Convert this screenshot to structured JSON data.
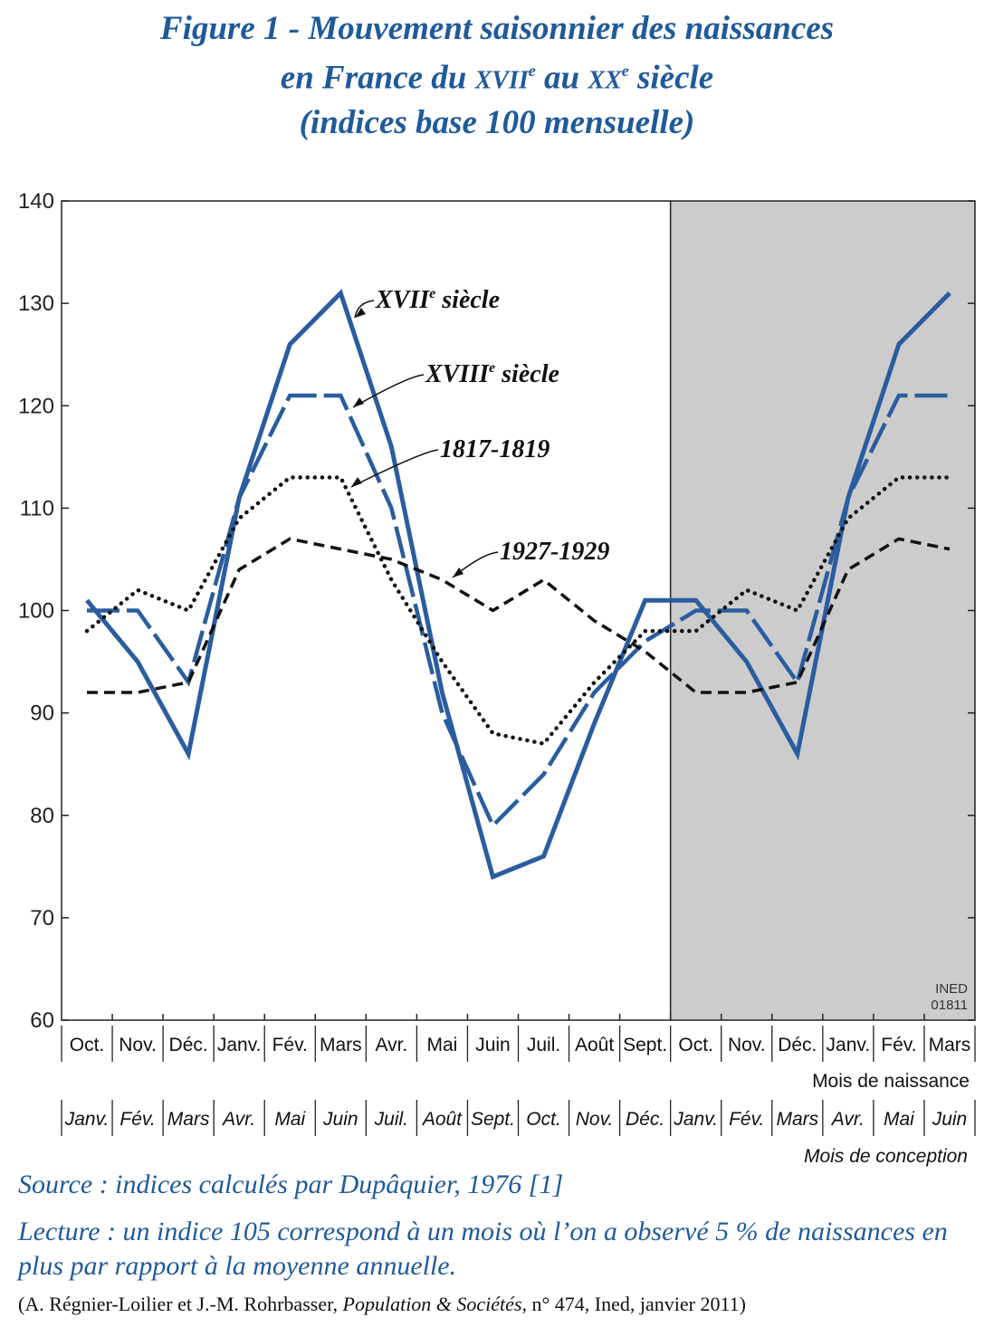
{
  "title": {
    "line1": "Figure 1 - Mouvement saisonnier des naissances",
    "line2_pre": "en France du ",
    "line2_c1": "XVII",
    "line2_sup1": "e",
    "line2_mid": " au ",
    "line2_c2": "XX",
    "line2_sup2": "e",
    "line2_post": " siècle",
    "line3": "(indices base 100 mensuelle)"
  },
  "chart_data": {
    "type": "line",
    "ylim": [
      60,
      140
    ],
    "yticks": [
      60,
      70,
      80,
      90,
      100,
      110,
      120,
      130,
      140
    ],
    "categories_naissance": [
      "Oct.",
      "Nov.",
      "Déc.",
      "Janv.",
      "Fév.",
      "Mars",
      "Avr.",
      "Mai",
      "Juin",
      "Juil.",
      "Août",
      "Sept.",
      "Oct.",
      "Nov.",
      "Déc.",
      "Janv.",
      "Fév.",
      "Mars"
    ],
    "categories_conception": [
      "Janv.",
      "Fév.",
      "Mars",
      "Avr.",
      "Mai",
      "Juin",
      "Juil.",
      "Août",
      "Sept.",
      "Oct.",
      "Nov.",
      "Déc.",
      "Janv.",
      "Fév.",
      "Mars",
      "Avr.",
      "Mai",
      "Juin"
    ],
    "xlabel_naissance": "Mois de naissance",
    "xlabel_conception": "Mois de conception",
    "shaded_from_index": 12,
    "series": [
      {
        "label_main": "XVII",
        "label_sup": "e",
        "label_rest": " siècle",
        "style": "solid",
        "color": "#2a5d9f",
        "values": [
          101,
          95,
          86,
          111,
          126,
          131,
          116,
          92,
          74,
          76,
          89,
          101,
          101,
          95,
          86,
          111,
          126,
          131
        ]
      },
      {
        "label_main": "XVIII",
        "label_sup": "e",
        "label_rest": " siècle",
        "style": "longdash",
        "color": "#2a5d9f",
        "values": [
          100,
          100,
          93,
          111,
          121,
          121,
          110,
          90,
          79,
          84,
          92,
          97,
          100,
          100,
          93,
          111,
          121,
          121
        ]
      },
      {
        "label_main": "1817-1819",
        "label_sup": "",
        "label_rest": "",
        "style": "dotted",
        "color": "#111111",
        "values": [
          98,
          102,
          100,
          109,
          113,
          113,
          103,
          95,
          88,
          87,
          93,
          98,
          98,
          102,
          100,
          109,
          113,
          113
        ]
      },
      {
        "label_main": "1927-1929",
        "label_sup": "",
        "label_rest": "",
        "style": "dashed",
        "color": "#111111",
        "values": [
          92,
          92,
          93,
          104,
          107,
          106,
          105,
          103,
          100,
          103,
          99,
          96,
          92,
          92,
          93,
          104,
          107,
          106
        ]
      }
    ],
    "watermark": [
      "INED",
      "01811"
    ],
    "grid": false,
    "shaded_color": "#cccccc"
  },
  "captions": {
    "source": "Source : indices calculés par Dupâquier, 1976 [1]",
    "lecture": "Lecture : un indice 105 correspond à un mois où l’on a observé 5 % de naissances en plus par rapport à la moyenne annuelle.",
    "credit_pre": "(A. Régnier-Loilier et J.-M. Rohrbasser, ",
    "credit_italic": "Population & Sociétés",
    "credit_post": ", n° 474, Ined, janvier 2011)"
  }
}
